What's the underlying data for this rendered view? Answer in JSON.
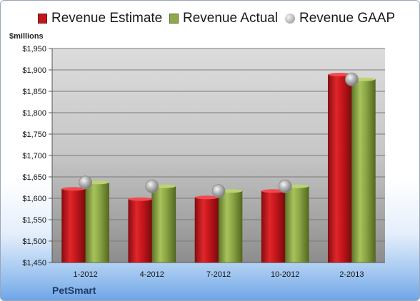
{
  "chart_data": {
    "type": "bar",
    "title": "",
    "xlabel": "",
    "ylabel": "$millions",
    "ylim": [
      1450,
      1950
    ],
    "y_ticks": [
      "$1,450",
      "$1,500",
      "$1,550",
      "$1,600",
      "$1,650",
      "$1,700",
      "$1,750",
      "$1,800",
      "$1,850",
      "$1,900",
      "$1,950"
    ],
    "y_tick_values": [
      1450,
      1500,
      1550,
      1600,
      1650,
      1700,
      1750,
      1800,
      1850,
      1900,
      1950
    ],
    "categories": [
      "1-2012",
      "4-2012",
      "7-2012",
      "10-2012",
      "2-2013"
    ],
    "series": [
      {
        "name": "Revenue Estimate",
        "kind": "bar",
        "color": "#c0171d",
        "values": [
          1622,
          1598,
          1602,
          1617,
          1889
        ]
      },
      {
        "name": "Revenue Actual",
        "kind": "bar",
        "color": "#8ea84a",
        "values": [
          1637,
          1628,
          1617,
          1628,
          1878
        ]
      },
      {
        "name": "Revenue GAAP",
        "kind": "marker",
        "color": "#a6a6a6",
        "values": [
          1637,
          1628,
          1617,
          1628,
          1878
        ]
      }
    ],
    "grid": true,
    "legend_position": "top"
  },
  "footer": {
    "company": "PetSmart"
  }
}
